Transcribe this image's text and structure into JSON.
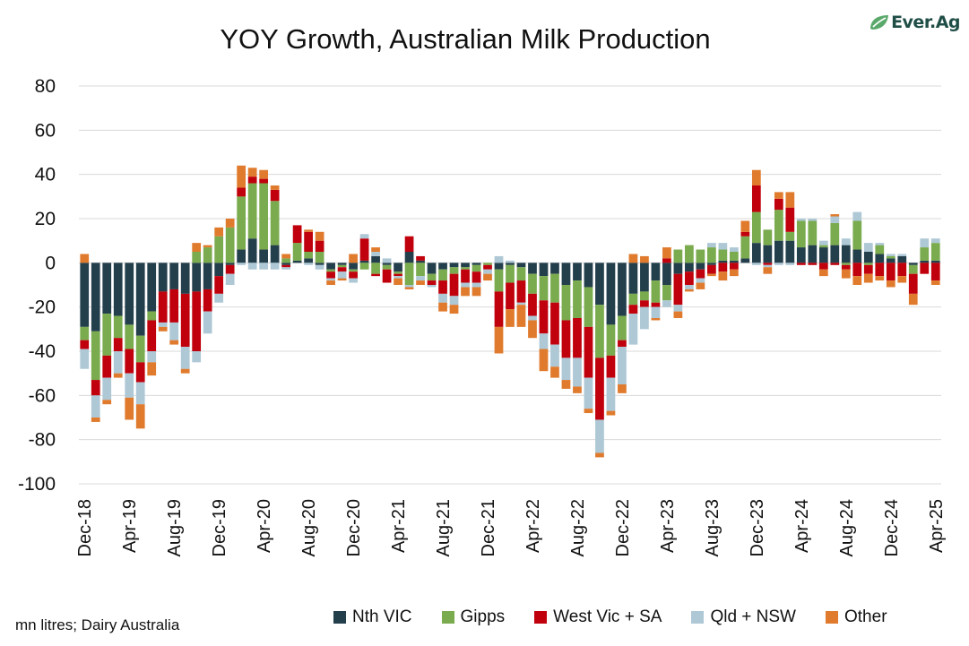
{
  "header": {
    "title": "YOY Growth, Australian Milk Production",
    "logo_text": "Ever.Ag"
  },
  "footer": {
    "source": "mn litres; Dairy Australia"
  },
  "chart_data": {
    "type": "bar",
    "stacked": true,
    "title": "YOY Growth, Australian Milk Production",
    "xlabel": "",
    "ylabel": "mn litres",
    "ylim": [
      -100,
      80
    ],
    "yticks": [
      80,
      60,
      40,
      20,
      0,
      -20,
      -40,
      -60,
      -80,
      -100
    ],
    "grid": true,
    "legend_position": "bottom",
    "x_tick_labels": [
      "Dec-18",
      "Apr-19",
      "Aug-19",
      "Dec-19",
      "Apr-20",
      "Aug-20",
      "Dec-20",
      "Apr-21",
      "Aug-21",
      "Dec-21",
      "Apr-22",
      "Aug-22",
      "Dec-22",
      "Apr-23",
      "Aug-23",
      "Dec-23",
      "Apr-24",
      "Aug-24",
      "Dec-24",
      "Apr-25"
    ],
    "categories": [
      "Dec-18",
      "Jan-19",
      "Feb-19",
      "Mar-19",
      "Apr-19",
      "May-19",
      "Jun-19",
      "Jul-19",
      "Aug-19",
      "Sep-19",
      "Oct-19",
      "Nov-19",
      "Dec-19",
      "Jan-20",
      "Feb-20",
      "Mar-20",
      "Apr-20",
      "May-20",
      "Jun-20",
      "Jul-20",
      "Aug-20",
      "Sep-20",
      "Oct-20",
      "Nov-20",
      "Dec-20",
      "Jan-21",
      "Feb-21",
      "Mar-21",
      "Apr-21",
      "May-21",
      "Jun-21",
      "Jul-21",
      "Aug-21",
      "Sep-21",
      "Oct-21",
      "Nov-21",
      "Dec-21",
      "Jan-22",
      "Feb-22",
      "Mar-22",
      "Apr-22",
      "May-22",
      "Jun-22",
      "Jul-22",
      "Aug-22",
      "Sep-22",
      "Oct-22",
      "Nov-22",
      "Dec-22",
      "Jan-23",
      "Feb-23",
      "Mar-23",
      "Apr-23",
      "May-23",
      "Jun-23",
      "Jul-23",
      "Aug-23",
      "Sep-23",
      "Oct-23",
      "Nov-23",
      "Dec-23",
      "Jan-24",
      "Feb-24",
      "Mar-24",
      "Apr-24",
      "May-24",
      "Jun-24",
      "Jul-24",
      "Aug-24",
      "Sep-24",
      "Oct-24",
      "Nov-24",
      "Dec-24",
      "Jan-25",
      "Feb-25",
      "Mar-25",
      "Apr-25"
    ],
    "series": [
      {
        "name": "Nth VIC",
        "color": "#243f4c",
        "values": [
          -29,
          -31,
          -23,
          -24,
          -28,
          -33,
          -22,
          -13,
          -12,
          -14,
          -13,
          -12,
          -6,
          -1,
          6,
          11,
          6,
          8,
          -1,
          1,
          2,
          -1,
          -3,
          -1,
          -3,
          1,
          3,
          -1,
          -4,
          5,
          1,
          -5,
          -3,
          -2,
          -2,
          -1,
          0,
          -3,
          -1,
          -2,
          -5,
          -6,
          -5,
          -10,
          -8,
          -11,
          -19,
          -28,
          -24,
          -14,
          -13,
          -8,
          -10,
          -5,
          -4,
          -3,
          -1,
          1,
          1,
          2,
          9,
          8,
          10,
          10,
          7,
          8,
          7,
          8,
          8,
          6,
          5,
          4,
          2,
          3,
          -1,
          1,
          1
        ]
      },
      {
        "name": "Gipps",
        "color": "#7aab4e",
        "values": [
          -6,
          -22,
          -19,
          -10,
          -11,
          -12,
          -4,
          0,
          0,
          0,
          5,
          7,
          12,
          16,
          24,
          25,
          30,
          20,
          2,
          8,
          3,
          5,
          -1,
          -1,
          -1,
          -3,
          -5,
          -2,
          -1,
          -10,
          -6,
          -3,
          -5,
          -3,
          -1,
          -3,
          -1,
          -10,
          -8,
          -6,
          -9,
          -11,
          -13,
          -16,
          -17,
          -18,
          -24,
          -14,
          -11,
          -5,
          -4,
          -10,
          -7,
          6,
          8,
          6,
          7,
          5,
          4,
          10,
          14,
          7,
          14,
          4,
          12,
          11,
          1,
          10,
          -1,
          13,
          -1,
          4,
          1,
          0,
          -4,
          6,
          8
        ]
      },
      {
        "name": "West Vic + SA",
        "color": "#c0000c",
        "values": [
          -4,
          -7,
          -10,
          -6,
          -11,
          -9,
          -14,
          -14,
          -15,
          -24,
          -27,
          -10,
          -8,
          -4,
          4,
          3,
          2,
          5,
          -1,
          8,
          9,
          5,
          -3,
          -2,
          -3,
          10,
          -1,
          -6,
          -1,
          7,
          2,
          -2,
          -6,
          -10,
          -6,
          -5,
          -2,
          -16,
          -12,
          -10,
          -10,
          -15,
          -19,
          -17,
          -18,
          -23,
          -28,
          -10,
          -3,
          -4,
          -3,
          -2,
          2,
          -14,
          -6,
          -4,
          -4,
          -4,
          -3,
          2,
          12,
          -1,
          5,
          11,
          -1,
          -1,
          -3,
          -1,
          -2,
          -6,
          -4,
          -6,
          -8,
          -6,
          -9,
          -5,
          -8
        ]
      },
      {
        "name": "Qld + NSW",
        "color": "#aec8d6",
        "values": [
          -9,
          -10,
          -10,
          -10,
          -11,
          -10,
          -5,
          -2,
          -8,
          -10,
          -5,
          -10,
          -4,
          -5,
          -1,
          -3,
          -3,
          -3,
          -1,
          0,
          -1,
          -2,
          -1,
          -3,
          -2,
          2,
          2,
          2,
          -1,
          -1,
          -2,
          -1,
          -4,
          -4,
          -2,
          -2,
          -2,
          3,
          1,
          -1,
          -2,
          -7,
          -10,
          -10,
          -13,
          -14,
          -15,
          -15,
          -17,
          -14,
          -10,
          -5,
          -3,
          -3,
          -2,
          -2,
          2,
          3,
          2,
          0,
          -1,
          -1,
          -1,
          -1,
          1,
          1,
          2,
          3,
          3,
          4,
          4,
          1,
          1,
          1,
          0,
          4,
          2
        ]
      },
      {
        "name": "Other",
        "color": "#e07b2e",
        "values": [
          4,
          -2,
          -2,
          -2,
          -10,
          -11,
          -6,
          -2,
          -2,
          -2,
          4,
          1,
          4,
          4,
          10,
          4,
          4,
          2,
          2,
          0,
          1,
          4,
          -2,
          -1,
          4,
          0,
          2,
          0,
          -3,
          -1,
          -2,
          0,
          -4,
          -4,
          -4,
          -4,
          -3,
          -12,
          -8,
          -10,
          -8,
          -10,
          -5,
          -4,
          -3,
          -2,
          -2,
          -2,
          -4,
          4,
          3,
          -1,
          5,
          -3,
          -1,
          -3,
          -1,
          -4,
          -3,
          5,
          7,
          -3,
          3,
          7,
          0,
          0,
          -3,
          1,
          -4,
          -4,
          -4,
          -2,
          -3,
          -3,
          -5,
          0,
          -2
        ]
      }
    ]
  }
}
